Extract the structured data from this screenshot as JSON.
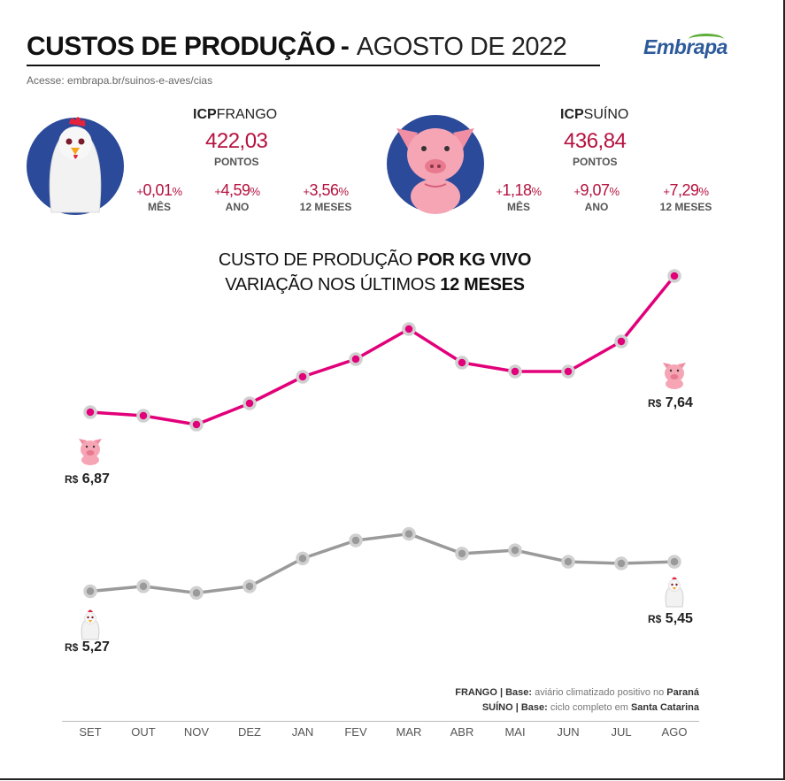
{
  "header": {
    "title_bold": "CUSTOS DE PRODUÇÃO",
    "title_dash": "-",
    "title_light": "AGOSTO DE 2022",
    "url": "Acesse: embrapa.br/suinos-e-aves/cias",
    "brand": "Embrapa"
  },
  "icp_frango": {
    "name_bold": "ICP",
    "name_rest": "FRANGO",
    "value": "422,03",
    "unit": "PONTOS",
    "stats": [
      {
        "sign": "+",
        "value": "0,01",
        "pct": "%",
        "label": "MÊS"
      },
      {
        "sign": "+",
        "value": "4,59",
        "pct": "%",
        "label": "ANO"
      },
      {
        "sign": "+",
        "value": "3,56",
        "pct": "%",
        "label": "12 MESES"
      }
    ]
  },
  "icp_suino": {
    "name_bold": "ICP",
    "name_rest": "SUÍNO",
    "value": "436,84",
    "unit": "PONTOS",
    "stats": [
      {
        "sign": "+",
        "value": "1,18",
        "pct": "%",
        "label": "MÊS"
      },
      {
        "sign": "+",
        "value": "9,07",
        "pct": "%",
        "label": "ANO"
      },
      {
        "sign": "+",
        "value": "7,29",
        "pct": "%",
        "label": "12 MESES"
      }
    ]
  },
  "chart_data": {
    "type": "line",
    "title_line1_a": "CUSTO DE PRODUÇÃO ",
    "title_line1_b": "POR KG VIVO",
    "title_line2_a": "VARIAÇÃO NOS ÚLTIMOS ",
    "title_line2_b": "12 MESES",
    "categories": [
      "SET",
      "OUT",
      "NOV",
      "DEZ",
      "JAN",
      "FEV",
      "MAR",
      "ABR",
      "MAI",
      "JUN",
      "JUL",
      "AGO"
    ],
    "series": [
      {
        "values": [
          6.87,
          6.85,
          6.8,
          6.92,
          7.07,
          7.17,
          7.34,
          7.15,
          7.1,
          7.1,
          7.27,
          7.64
        ],
        "color": "#e2007a",
        "start_label": "6,87",
        "end_label": "7,64",
        "currency": "R$",
        "icon": "pig-icon"
      },
      {
        "values": [
          5.27,
          5.3,
          5.26,
          5.3,
          5.47,
          5.58,
          5.62,
          5.5,
          5.52,
          5.45,
          5.44,
          5.45
        ],
        "color": "#9a9a9a",
        "start_label": "5,27",
        "end_label": "5,45",
        "currency": "R$",
        "icon": "chicken-icon"
      }
    ],
    "notes": [
      {
        "bold": "FRANGO | Base:",
        "text_a": " aviário climatizado positivo no ",
        "bold2": "Paraná"
      },
      {
        "bold": "SUÍNO | Base:",
        "text_a": " ciclo completo em ",
        "bold2": "Santa Catarina"
      }
    ]
  }
}
